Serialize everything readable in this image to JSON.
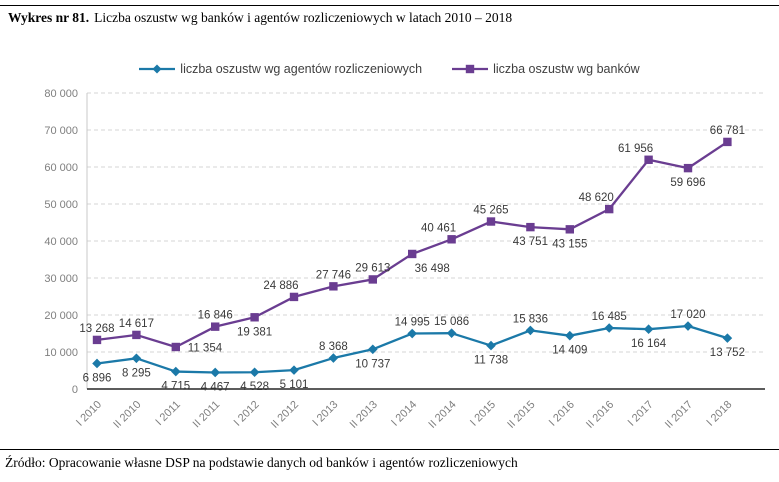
{
  "title": {
    "prefix": "Wykres nr 81.",
    "text": "Liczba oszustw wg banków i agentów rozliczeniowych w latach 2010 – 2018"
  },
  "source": "Źródło: Opracowanie własne DSP na podstawie danych od banków i agentów rozliczeniowych",
  "chart_data": {
    "type": "line",
    "title": "Wykres nr 81. Liczba oszustw wg banków i agentów rozliczeniowych w latach 2010 – 2018",
    "categories": [
      "I 2010",
      "II 2010",
      "I 2011",
      "II 2011",
      "I 2012",
      "II 2012",
      "I 2013",
      "II 2013",
      "I 2014",
      "II 2014",
      "I 2015",
      "II 2015",
      "I 2016",
      "II 2016",
      "I 2017",
      "II 2017",
      "I 2018"
    ],
    "ylim": [
      0,
      80000
    ],
    "ytick_step": 10000,
    "ytick_labels": [
      "0",
      "10 000",
      "20 000",
      "30 000",
      "40 000",
      "50 000",
      "60 000",
      "70 000",
      "80 000"
    ],
    "grid": "horizontal-dashed",
    "grid_color": "#d4d4d4",
    "axis_label_color": "#7f7f7f",
    "data_label_color": "#3a3a3a",
    "legend_position": "top",
    "series": [
      {
        "name": "liczba oszustw wg agentów rozliczeniowych",
        "marker": "diamond",
        "color": "#1B79A8",
        "values": [
          6896,
          8295,
          4715,
          4467,
          4528,
          5101,
          8368,
          10737,
          14995,
          15086,
          11738,
          15836,
          14409,
          16485,
          16164,
          17020,
          13752
        ],
        "labels": [
          "6 896",
          "8 295",
          "4 715",
          "4 467",
          "4 528",
          "5 101",
          "8 368",
          "10 737",
          "14 995",
          "15 086",
          "11 738",
          "15 836",
          "14 409",
          "16 485",
          "16 164",
          "17 020",
          "13 752"
        ],
        "label_pos": [
          "below",
          "below",
          "below",
          "below",
          "below",
          "below",
          "above",
          "below",
          "above",
          "above",
          "below",
          "above",
          "below",
          "above",
          "below",
          "above",
          "below"
        ]
      },
      {
        "name": "liczba oszustw wg banków",
        "marker": "square",
        "color": "#6A3D91",
        "values": [
          13268,
          14617,
          11354,
          16846,
          19381,
          24886,
          27746,
          29613,
          36498,
          40461,
          45265,
          43751,
          43155,
          48620,
          61956,
          59696,
          66781
        ],
        "labels": [
          "13 268",
          "14 617",
          "11 354",
          "16 846",
          "19 381",
          "24 886",
          "27 746",
          "29 613",
          "36 498",
          "40 461",
          "45 265",
          "43 751",
          "43 155",
          "48 620",
          "61 956",
          "59 696",
          "66 781"
        ],
        "label_pos": [
          "above",
          "above",
          "right",
          "above",
          "below",
          "above-left",
          "above",
          "above",
          "below-right",
          "above-left",
          "above",
          "below",
          "below",
          "above-left",
          "above-left",
          "below",
          "above"
        ]
      }
    ]
  }
}
